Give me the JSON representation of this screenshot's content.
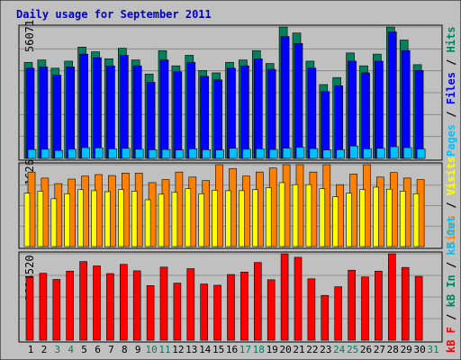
{
  "title": "Daily usage for September 2011",
  "colors": {
    "background": "#C0C0C0",
    "plot_border": "#000000",
    "title_text": "#0000CC",
    "hits": "#00805C",
    "files": "#0000FF",
    "pages": "#00C0FF",
    "visits": "#FFFF00",
    "sites": "#FF8000",
    "kbf": "#FF0000",
    "kbin": "#00805C",
    "kbout": "#00C0FF",
    "weekend_day_label": "#00805C",
    "weekday_label": "#000000"
  },
  "chart_data": [
    {
      "type": "bar",
      "panel": "hits-files-pages",
      "ylabel_max": "56071",
      "ylim": [
        0,
        56071
      ],
      "legend": [
        "Pages",
        "/",
        "Files",
        "/",
        "Hits"
      ],
      "categories": [
        "1",
        "2",
        "3",
        "4",
        "5",
        "6",
        "7",
        "8",
        "9",
        "10",
        "11",
        "12",
        "13",
        "14",
        "15",
        "16",
        "17",
        "18",
        "19",
        "20",
        "21",
        "22",
        "23",
        "24",
        "25",
        "26",
        "27",
        "28",
        "29",
        "30"
      ],
      "weekend_days": [
        3,
        4,
        10,
        11,
        17,
        18,
        24,
        25
      ],
      "series": [
        {
          "name": "Hits",
          "values": [
            41000,
            42000,
            38500,
            41500,
            47500,
            45500,
            42500,
            47000,
            42000,
            36000,
            46000,
            39500,
            44000,
            37500,
            36500,
            41000,
            42000,
            46000,
            40500,
            56071,
            53500,
            41500,
            31500,
            34500,
            45000,
            39500,
            44500,
            56071,
            50500,
            40000
          ]
        },
        {
          "name": "Files",
          "values": [
            38500,
            39000,
            35500,
            39000,
            44500,
            43000,
            39500,
            44000,
            39500,
            32500,
            42000,
            37000,
            41000,
            35000,
            33500,
            38500,
            39500,
            42500,
            38000,
            52000,
            49000,
            38500,
            28500,
            31000,
            41500,
            36500,
            41500,
            54000,
            46000,
            37500
          ]
        },
        {
          "name": "Pages",
          "values": [
            3800,
            3900,
            3400,
            3900,
            4600,
            4500,
            4100,
            4300,
            3900,
            3700,
            3800,
            3600,
            4100,
            3700,
            3600,
            4300,
            3900,
            4100,
            3800,
            4400,
            4700,
            4200,
            3600,
            3700,
            5300,
            4100,
            4300,
            5000,
            4600,
            4000
          ]
        }
      ]
    },
    {
      "type": "bar",
      "panel": "visits-sites",
      "ylabel_max": "1626",
      "ylim": [
        0,
        1626
      ],
      "legend": [
        "Sites",
        "/",
        "Visits"
      ],
      "categories": [
        "1",
        "2",
        "3",
        "4",
        "5",
        "6",
        "7",
        "8",
        "9",
        "10",
        "11",
        "12",
        "13",
        "14",
        "15",
        "16",
        "17",
        "18",
        "19",
        "20",
        "21",
        "22",
        "23",
        "24",
        "25",
        "26",
        "27",
        "28",
        "29",
        "30"
      ],
      "series": [
        {
          "name": "Visits",
          "values": [
            1060,
            1100,
            950,
            1050,
            1130,
            1110,
            1090,
            1130,
            1100,
            930,
            1040,
            1080,
            1150,
            1050,
            1120,
            1110,
            1110,
            1130,
            1170,
            1270,
            1230,
            1230,
            1150,
            990,
            1060,
            1130,
            1180,
            1140,
            1100,
            1050
          ]
        },
        {
          "name": "Sites",
          "values": [
            1480,
            1360,
            1250,
            1340,
            1400,
            1430,
            1410,
            1460,
            1460,
            1270,
            1330,
            1480,
            1380,
            1310,
            1626,
            1550,
            1400,
            1480,
            1560,
            1626,
            1626,
            1480,
            1626,
            1230,
            1440,
            1626,
            1380,
            1470,
            1360,
            1330
          ]
        }
      ]
    },
    {
      "type": "bar",
      "panel": "kbytes",
      "ylabel_max": "2814520",
      "ylim": [
        0,
        2814520
      ],
      "legend": [
        "kB F",
        "/",
        "kB In",
        "/",
        "kB Out"
      ],
      "categories": [
        "1",
        "2",
        "3",
        "4",
        "5",
        "6",
        "7",
        "8",
        "9",
        "10",
        "11",
        "12",
        "13",
        "14",
        "15",
        "16",
        "17",
        "18",
        "19",
        "20",
        "21",
        "22",
        "23",
        "24",
        "25",
        "26",
        "27",
        "28",
        "29",
        "30"
      ],
      "series": [
        {
          "name": "kB F",
          "values": [
            2050000,
            2180000,
            1980000,
            2250000,
            2560000,
            2420000,
            2170000,
            2470000,
            2260000,
            1780000,
            2380000,
            1860000,
            2330000,
            1830000,
            1790000,
            2140000,
            2220000,
            2530000,
            1970000,
            2814520,
            2700000,
            2000000,
            1460000,
            1740000,
            2280000,
            2060000,
            2250000,
            2814520,
            2370000,
            2080000
          ]
        }
      ]
    }
  ],
  "x_labels": [
    "1",
    "2",
    "3",
    "4",
    "5",
    "6",
    "7",
    "8",
    "9",
    "10",
    "11",
    "12",
    "13",
    "14",
    "15",
    "16",
    "17",
    "18",
    "19",
    "20",
    "21",
    "22",
    "23",
    "24",
    "25",
    "26",
    "27",
    "28",
    "29",
    "30",
    "31"
  ]
}
